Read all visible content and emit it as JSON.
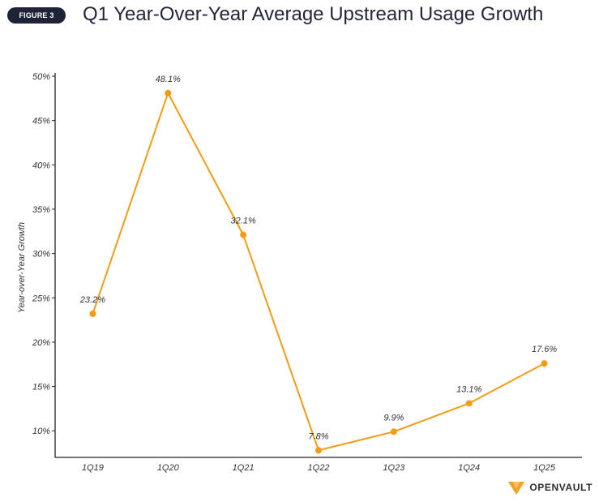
{
  "header": {
    "figure_label": "FIGURE 3",
    "title": "Q1 Year-Over-Year Average Upstream Usage Growth"
  },
  "brand": {
    "name": "OPENVAULT",
    "logo_icon": "openvault-logo-icon",
    "logo_color": "#f0a21c"
  },
  "chart_data": {
    "type": "line",
    "title": "Q1 Year-Over-Year Average Upstream Usage Growth",
    "xlabel": "",
    "ylabel": "Year-over-Year Growth",
    "categories": [
      "1Q19",
      "1Q20",
      "1Q21",
      "1Q22",
      "1Q23",
      "1Q24",
      "1Q25"
    ],
    "series": [
      {
        "values": [
          23.2,
          48.1,
          32.1,
          7.8,
          9.9,
          13.1,
          17.6
        ],
        "labels": [
          "23.2%",
          "48.1%",
          "32.1%",
          "7.8%",
          "9.9%",
          "13.1%",
          "17.6%"
        ],
        "color": "#f39c12"
      }
    ],
    "ylim": [
      7,
      50
    ],
    "yticks": [
      10,
      15,
      20,
      25,
      30,
      35,
      40,
      45,
      50
    ],
    "ytick_labels": [
      "10%",
      "15%",
      "20%",
      "25%",
      "30%",
      "35%",
      "40%",
      "45%",
      "50%"
    ],
    "grid": false,
    "legend": "none"
  }
}
